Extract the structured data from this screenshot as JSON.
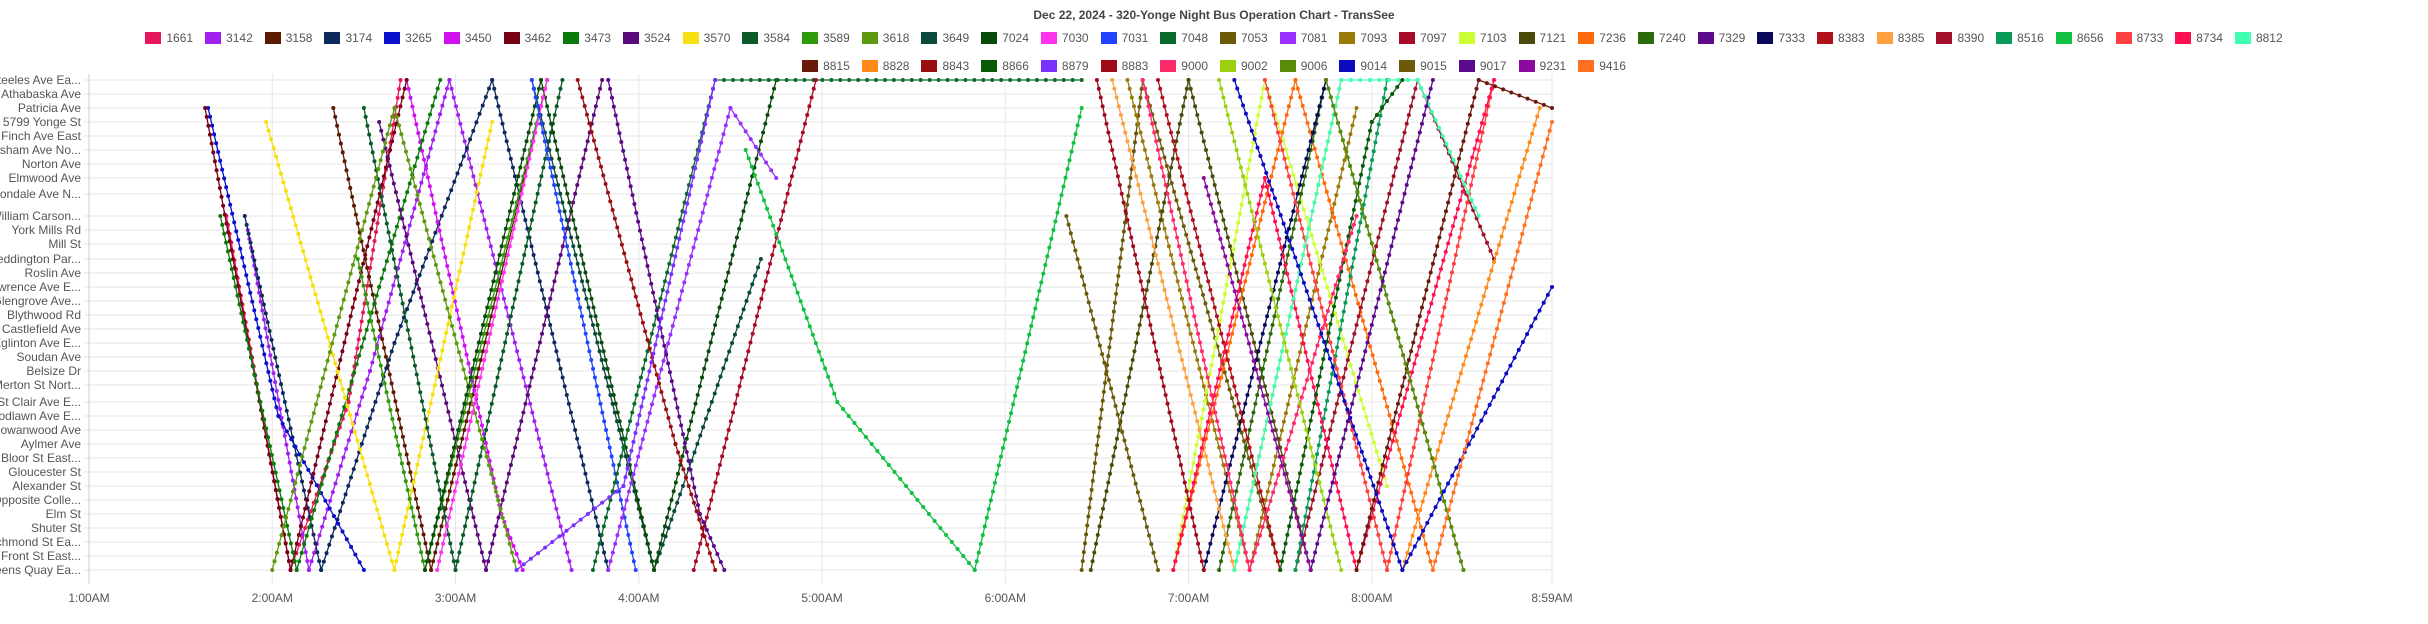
{
  "chart_data": {
    "type": "line",
    "title": "Dec 22, 2024 - 320-Yonge Night Bus Operation Chart - TransSee",
    "x_ticks": [
      "1:00AM",
      "2:00AM",
      "3:00AM",
      "4:00AM",
      "5:00AM",
      "6:00AM",
      "7:00AM",
      "8:00AM",
      "8:59AM"
    ],
    "xlim": [
      "1:00",
      "8:59"
    ],
    "grid": true,
    "legend_position": "top",
    "stops": [
      "Steeles Ave Ea...",
      "Athabaska Ave",
      "Patricia Ave",
      "5799 Yonge St",
      "Finch Ave East",
      "Horsham Ave No...",
      "Norton Ave",
      "Elmwood Ave",
      "Avondale Ave N...",
      "William Carson...",
      "York Mills Rd",
      "Mill St",
      "Teddington Par...",
      "Roslin Ave",
      "Lawrence Ave E...",
      "Glengrove Ave...",
      "Blythwood Rd",
      "Castlefield Ave",
      "Eglinton Ave E...",
      "Soudan Ave",
      "Belsize Dr",
      "Merton St Nort...",
      "St Clair Ave E...",
      "Woodlawn Ave E...",
      "Rowanwood Ave",
      "Aylmer Ave",
      "Bloor St East...",
      "Gloucester St",
      "Alexander St",
      "Opposite Colle...",
      "Elm St",
      "Shuter St",
      "Richmond St Ea...",
      "Front St East...",
      "Queens Quay Ea..."
    ],
    "series": [
      {
        "name": "1661",
        "color": "#e8175d",
        "points": [
          [
            "1:45",
            9
          ],
          [
            "2:06",
            34
          ],
          [
            "2:25",
            22
          ],
          [
            "2:42",
            0
          ]
        ]
      },
      {
        "name": "3142",
        "color": "#a020f0",
        "points": [
          [
            "1:52",
            10
          ],
          [
            "2:12",
            34
          ],
          [
            "2:32",
            20
          ],
          [
            "2:58",
            0
          ],
          [
            "3:38",
            34
          ]
        ]
      },
      {
        "name": "3158",
        "color": "#5c1a00",
        "points": [
          [
            "2:20",
            2
          ],
          [
            "2:52",
            34
          ],
          [
            "3:30",
            0
          ]
        ]
      },
      {
        "name": "3174",
        "color": "#0d2a5c",
        "points": [
          [
            "1:51",
            9
          ],
          [
            "2:16",
            34
          ],
          [
            "2:40",
            18
          ],
          [
            "3:12",
            0
          ],
          [
            "3:50",
            34
          ]
        ]
      },
      {
        "name": "3265",
        "color": "#0a10cc",
        "points": [
          [
            "1:39",
            2
          ],
          [
            "2:02",
            23
          ],
          [
            "2:30",
            34
          ]
        ]
      },
      {
        "name": "3450",
        "color": "#d010f0",
        "points": [
          [
            "2:44",
            0
          ],
          [
            "3:15",
            30
          ],
          [
            "3:22",
            34
          ]
        ]
      },
      {
        "name": "3462",
        "color": "#7a0018",
        "points": [
          [
            "1:38",
            2
          ],
          [
            "2:06",
            34
          ],
          [
            "2:44",
            0
          ]
        ]
      },
      {
        "name": "3473",
        "color": "#0a7a0a",
        "points": [
          [
            "1:43",
            9
          ],
          [
            "2:08",
            34
          ],
          [
            "2:35",
            14
          ],
          [
            "2:55",
            0
          ]
        ]
      },
      {
        "name": "3524",
        "color": "#5a0a7a",
        "points": [
          [
            "2:35",
            3
          ],
          [
            "3:10",
            34
          ],
          [
            "3:48",
            0
          ]
        ]
      },
      {
        "name": "3570",
        "color": "#f5e010",
        "points": [
          [
            "1:58",
            3
          ],
          [
            "2:40",
            34
          ],
          [
            "3:12",
            3
          ]
        ]
      },
      {
        "name": "3584",
        "color": "#0a5a2a",
        "points": [
          [
            "2:30",
            2
          ],
          [
            "3:00",
            34
          ],
          [
            "3:35",
            0
          ]
        ]
      },
      {
        "name": "3589",
        "color": "#2e9a0a",
        "points": [
          [
            "2:28",
            12
          ],
          [
            "2:50",
            34
          ],
          [
            "3:30",
            0
          ]
        ]
      },
      {
        "name": "3618",
        "color": "#5e9a10",
        "points": [
          [
            "2:00",
            34
          ],
          [
            "2:40",
            2
          ],
          [
            "3:20",
            34
          ]
        ]
      },
      {
        "name": "3649",
        "color": "#0a4a3a",
        "points": [
          [
            "3:25",
            0
          ],
          [
            "4:05",
            34
          ],
          [
            "4:40",
            12
          ]
        ]
      },
      {
        "name": "7024",
        "color": "#0a4a0a",
        "points": [
          [
            "2:50",
            34
          ],
          [
            "3:28",
            0
          ],
          [
            "4:05",
            34
          ],
          [
            "4:45",
            0
          ]
        ]
      },
      {
        "name": "7030",
        "color": "#ff33ee",
        "points": [
          [
            "2:54",
            34
          ],
          [
            "3:30",
            0
          ]
        ]
      },
      {
        "name": "7031",
        "color": "#2244ff",
        "points": [
          [
            "3:25",
            0
          ],
          [
            "3:59",
            34
          ]
        ]
      },
      {
        "name": "7048",
        "color": "#0a6a2a",
        "points": [
          [
            "3:45",
            34
          ],
          [
            "4:25",
            0
          ],
          [
            "6:25",
            0
          ]
        ]
      },
      {
        "name": "7053",
        "color": "#6a5a0a",
        "points": [
          [
            "6:25",
            34
          ],
          [
            "6:45",
            0
          ],
          [
            "7:30",
            34
          ]
        ]
      },
      {
        "name": "7081",
        "color": "#9a30ff",
        "points": [
          [
            "3:50",
            34
          ],
          [
            "4:30",
            2
          ],
          [
            "4:45",
            7
          ]
        ]
      },
      {
        "name": "7093",
        "color": "#9a7a0a",
        "points": [
          [
            "6:40",
            0
          ],
          [
            "7:20",
            34
          ],
          [
            "7:55",
            2
          ]
        ]
      },
      {
        "name": "7097",
        "color": "#a80a2a",
        "points": [
          [
            "4:18",
            34
          ],
          [
            "4:58",
            0
          ]
        ]
      },
      {
        "name": "7103",
        "color": "#ccff33",
        "points": [
          [
            "6:55",
            34
          ],
          [
            "7:25",
            0
          ],
          [
            "8:05",
            28
          ]
        ]
      },
      {
        "name": "7121",
        "color": "#4a4a0a",
        "points": [
          [
            "6:28",
            34
          ],
          [
            "7:00",
            0
          ],
          [
            "7:40",
            34
          ]
        ]
      },
      {
        "name": "7236",
        "color": "#ff6a0a",
        "points": [
          [
            "6:55",
            34
          ],
          [
            "7:35",
            0
          ],
          [
            "8:20",
            34
          ]
        ]
      },
      {
        "name": "7240",
        "color": "#2a6a0a",
        "points": [
          [
            "7:10",
            34
          ],
          [
            "7:45",
            0
          ],
          [
            "8:30",
            34
          ]
        ]
      },
      {
        "name": "7329",
        "color": "#5a0a8a",
        "points": [
          [
            "3:50",
            0
          ],
          [
            "4:20",
            30
          ],
          [
            "4:28",
            34
          ]
        ]
      },
      {
        "name": "7333",
        "color": "#0a0a5a",
        "points": [
          [
            "7:05",
            34
          ],
          [
            "7:45",
            0
          ]
        ]
      },
      {
        "name": "8383",
        "color": "#b0101a",
        "points": [
          [
            "6:50",
            0
          ],
          [
            "7:30",
            34
          ]
        ]
      },
      {
        "name": "8385",
        "color": "#ffa040",
        "points": [
          [
            "6:35",
            0
          ],
          [
            "7:15",
            34
          ],
          [
            "7:50",
            0
          ]
        ]
      },
      {
        "name": "8390",
        "color": "#a0102a",
        "points": [
          [
            "7:35",
            34
          ],
          [
            "8:15",
            0
          ],
          [
            "8:40",
            12
          ]
        ]
      },
      {
        "name": "8516",
        "color": "#0a9a5a",
        "points": [
          [
            "7:35",
            34
          ],
          [
            "8:05",
            0
          ]
        ]
      },
      {
        "name": "8656",
        "color": "#10c040",
        "points": [
          [
            "4:35",
            5
          ],
          [
            "5:05",
            22
          ],
          [
            "5:50",
            34
          ],
          [
            "6:25",
            2
          ]
        ]
      },
      {
        "name": "8733",
        "color": "#ff4040",
        "points": [
          [
            "7:25",
            0
          ],
          [
            "8:05",
            34
          ],
          [
            "8:40",
            0
          ]
        ]
      },
      {
        "name": "8734",
        "color": "#ff1050",
        "points": [
          [
            "6:55",
            34
          ],
          [
            "7:25",
            7
          ],
          [
            "7:55",
            34
          ],
          [
            "8:40",
            0
          ]
        ]
      },
      {
        "name": "8812",
        "color": "#40ffb0",
        "points": [
          [
            "7:15",
            34
          ],
          [
            "7:50",
            0
          ],
          [
            "8:15",
            0
          ],
          [
            "8:35",
            9
          ]
        ]
      },
      {
        "name": "8815",
        "color": "#6a1a0a",
        "points": [
          [
            "7:55",
            34
          ],
          [
            "8:35",
            0
          ],
          [
            "8:59",
            2
          ]
        ]
      },
      {
        "name": "8828",
        "color": "#ff8a1a",
        "points": [
          [
            "8:10",
            34
          ],
          [
            "8:55",
            2
          ]
        ]
      },
      {
        "name": "8843",
        "color": "#9a1010",
        "points": [
          [
            "3:40",
            0
          ],
          [
            "4:12",
            25
          ],
          [
            "4:25",
            34
          ]
        ]
      },
      {
        "name": "8866",
        "color": "#0a5a0a",
        "points": [
          [
            "7:30",
            34
          ],
          [
            "8:00",
            3
          ],
          [
            "8:10",
            0
          ]
        ]
      },
      {
        "name": "8879",
        "color": "#7a30ff",
        "points": [
          [
            "3:20",
            34
          ],
          [
            "3:55",
            28
          ],
          [
            "4:25",
            0
          ]
        ]
      },
      {
        "name": "8883",
        "color": "#a00a1a",
        "points": [
          [
            "6:30",
            0
          ],
          [
            "7:05",
            34
          ]
        ]
      },
      {
        "name": "9000",
        "color": "#ff2a6a",
        "points": [
          [
            "6:45",
            0
          ],
          [
            "7:20",
            34
          ],
          [
            "7:55",
            9
          ]
        ]
      },
      {
        "name": "9002",
        "color": "#9ad010",
        "points": [
          [
            "7:10",
            0
          ],
          [
            "7:50",
            34
          ]
        ]
      },
      {
        "name": "9006",
        "color": "#5a8a0a",
        "points": [
          [
            "7:45",
            0
          ],
          [
            "8:30",
            34
          ]
        ]
      },
      {
        "name": "9014",
        "color": "#0a0ac0",
        "points": [
          [
            "7:15",
            0
          ],
          [
            "8:10",
            34
          ],
          [
            "8:59",
            14
          ]
        ]
      },
      {
        "name": "9015",
        "color": "#6a5a0a",
        "points": [
          [
            "6:20",
            9
          ],
          [
            "6:50",
            34
          ]
        ]
      },
      {
        "name": "9017",
        "color": "#5a0a8a",
        "points": [
          [
            "7:40",
            34
          ],
          [
            "8:20",
            0
          ]
        ]
      },
      {
        "name": "9231",
        "color": "#8a0aa0",
        "points": [
          [
            "7:05",
            7
          ],
          [
            "7:40",
            34
          ]
        ]
      },
      {
        "name": "9416",
        "color": "#ff7020",
        "points": [
          [
            "8:20",
            34
          ],
          [
            "8:59",
            3
          ]
        ]
      }
    ]
  }
}
